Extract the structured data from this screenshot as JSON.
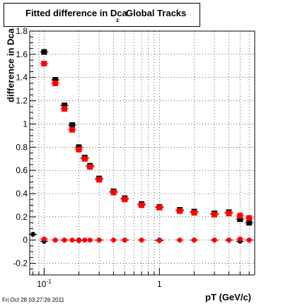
{
  "chart_data": {
    "type": "scatter",
    "title_main": "Fitted difference in Dca",
    "title_subscript": "z",
    "title_tail": "Global Tracks",
    "xlabel": "pT (GeV/c)",
    "ylabel": "difference in Dca",
    "ylim": [
      -0.3,
      1.8
    ],
    "xlim": [
      0.075,
      6.7
    ],
    "xscale": "log",
    "grid": true,
    "legend": "none",
    "y_ticks": [
      -0.2,
      0,
      0.2,
      0.4,
      0.6,
      0.8,
      1,
      1.2,
      1.4,
      1.6,
      1.8
    ],
    "y_tick_labels": [
      "-0.2",
      "0",
      "0.2",
      "0.4",
      "0.6",
      "0.8",
      "1",
      "1.2",
      "1.4",
      "1.6",
      "1.8"
    ],
    "x_tick_labels": [
      {
        "value": 0.1,
        "base": "10",
        "exp": "-1"
      },
      {
        "value": 1,
        "base": "1",
        "exp": ""
      }
    ],
    "series": [
      {
        "color": "#000000",
        "marker": "square",
        "x": [
          0.1,
          0.125,
          0.15,
          0.175,
          0.2,
          0.225,
          0.25,
          0.3,
          0.4,
          0.5,
          0.7,
          1.0,
          1.5,
          2.0,
          3.0,
          4.0,
          5.0,
          6.0
        ],
        "y": [
          1.62,
          1.38,
          1.16,
          0.99,
          0.8,
          0.71,
          0.64,
          0.53,
          0.42,
          0.36,
          0.31,
          0.285,
          0.26,
          0.245,
          0.23,
          0.24,
          0.18,
          0.15
        ]
      },
      {
        "color": "#ff0000",
        "marker": "square",
        "x": [
          0.1,
          0.125,
          0.15,
          0.175,
          0.2,
          0.225,
          0.25,
          0.3,
          0.4,
          0.5,
          0.7,
          1.0,
          1.5,
          2.0,
          3.0,
          4.0,
          5.0,
          6.0
        ],
        "y": [
          1.52,
          1.35,
          1.13,
          0.95,
          0.78,
          0.7,
          0.63,
          0.52,
          0.41,
          0.35,
          0.3,
          0.28,
          0.25,
          0.235,
          0.22,
          0.23,
          0.21,
          0.19
        ]
      },
      {
        "color": "#000000",
        "marker": "circle",
        "x": [
          0.08,
          0.1,
          0.15,
          0.2,
          0.3,
          0.5,
          1.0,
          2.0,
          3.0,
          4.0,
          5.0,
          6.0
        ],
        "y": [
          0.05,
          -0.01,
          0.0,
          0.0,
          0.0,
          0.0,
          0.0,
          0.0,
          0.0,
          0.0,
          -0.01,
          0.0
        ]
      },
      {
        "color": "#ff0000",
        "marker": "circle",
        "x": [
          0.1,
          0.125,
          0.15,
          0.175,
          0.2,
          0.225,
          0.25,
          0.3,
          0.4,
          0.5,
          0.7,
          1.0,
          1.5,
          2.0,
          3.0,
          4.0,
          5.0,
          6.0
        ],
        "y": [
          0.01,
          0.0,
          0.0,
          0.0,
          -0.005,
          0.0,
          0.0,
          0.0,
          0.0,
          0.0,
          0.0,
          -0.005,
          0.0,
          0.0,
          0.0,
          0.0,
          0.01,
          0.0
        ]
      }
    ]
  },
  "footer": {
    "datestamp": "Fri Oct 28 03:27:26 2011"
  }
}
